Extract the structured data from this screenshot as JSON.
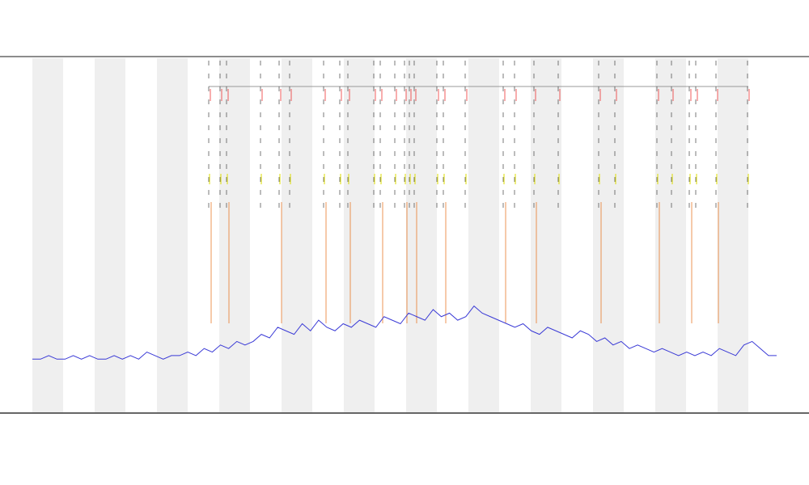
{
  "chart_data": {
    "type": "line",
    "categories": [
      null,
      null,
      null,
      null,
      null,
      null,
      null,
      null,
      null,
      null,
      null,
      null,
      null,
      null,
      null,
      null,
      null,
      null,
      null,
      null,
      null,
      null,
      null,
      null,
      null,
      null,
      null,
      null,
      null,
      null,
      null,
      null,
      null,
      null,
      null,
      null,
      null,
      null,
      null,
      null,
      null,
      null,
      null,
      null,
      null,
      null,
      null,
      null,
      null,
      null,
      null,
      null,
      null,
      null,
      null,
      null,
      null,
      null,
      null,
      null,
      null,
      null,
      null,
      null,
      null,
      null,
      null,
      null,
      null,
      null,
      null,
      null,
      null,
      null,
      null,
      null,
      null,
      null,
      null,
      null,
      null,
      null,
      null,
      null,
      null,
      null,
      null,
      null,
      null,
      null,
      null,
      null
    ],
    "series": [
      {
        "color": "#3a3ad6",
        "values": [
          15,
          15,
          16,
          15,
          15,
          16,
          15,
          16,
          15,
          15,
          16,
          15,
          16,
          15,
          17,
          16,
          15,
          16,
          16,
          17,
          16,
          18,
          17,
          19,
          18,
          20,
          19,
          20,
          22,
          21,
          24,
          23,
          22,
          25,
          23,
          26,
          24,
          23,
          25,
          24,
          26,
          25,
          24,
          27,
          26,
          25,
          28,
          27,
          26,
          29,
          27,
          28,
          26,
          27,
          30,
          28,
          27,
          26,
          25,
          24,
          25,
          23,
          22,
          24,
          23,
          22,
          21,
          23,
          22,
          20,
          21,
          19,
          20,
          18,
          19,
          18,
          17,
          18,
          17,
          16,
          17,
          16,
          17,
          16,
          18,
          17,
          16,
          19,
          20,
          18,
          16,
          16
        ]
      }
    ],
    "ylim": [
      0,
      100
    ]
  }
}
